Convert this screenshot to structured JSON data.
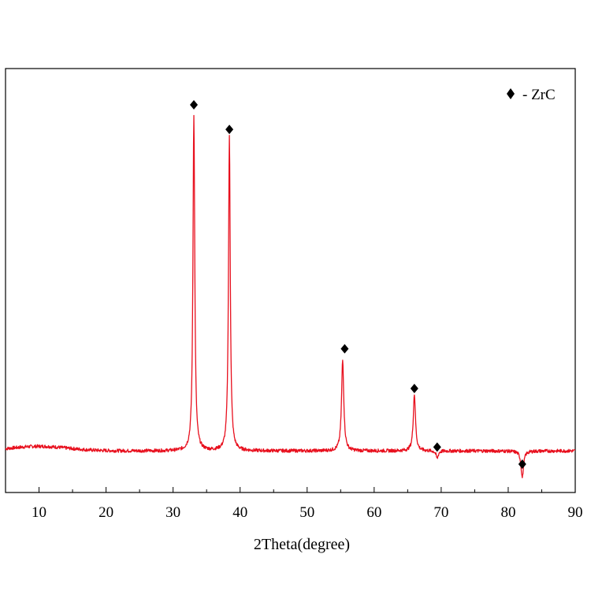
{
  "chart_data": {
    "type": "line",
    "title": "",
    "xlabel": "2Theta(degree)",
    "ylabel": "",
    "xlim": [
      5,
      90
    ],
    "ylim": [
      0,
      100
    ],
    "x_ticks": [
      10,
      20,
      30,
      40,
      50,
      60,
      70,
      80,
      90
    ],
    "x_tick_labels": [
      "10",
      "20",
      "30",
      "40",
      "50",
      "60",
      "70",
      "80",
      "90"
    ],
    "y_ticks_shown": false,
    "grid": false,
    "legend": {
      "position": "top-right",
      "entries": [
        {
          "marker": "diamond",
          "label": "- ZrC"
        }
      ]
    },
    "colors": {
      "line": "#e8101e",
      "marker": "#000000"
    },
    "baseline": 11,
    "series": [
      {
        "name": "",
        "peaks": [
          {
            "x": 33.1,
            "y": 100,
            "width": 0.16
          },
          {
            "x": 38.4,
            "y": 94,
            "width": 0.16
          },
          {
            "x": 55.3,
            "y": 35,
            "width": 0.2
          },
          {
            "x": 66.0,
            "y": 26,
            "width": 0.2
          },
          {
            "x": 69.4,
            "y": 9,
            "width": 0.2
          },
          {
            "x": 82.1,
            "y": 4,
            "width": 0.22
          }
        ]
      }
    ],
    "markers": [
      {
        "x": 33.1,
        "y": 102.5,
        "symbol": "diamond"
      },
      {
        "x": 38.4,
        "y": 96,
        "symbol": "diamond"
      },
      {
        "x": 55.6,
        "y": 38,
        "symbol": "diamond"
      },
      {
        "x": 66.0,
        "y": 27.5,
        "symbol": "diamond"
      },
      {
        "x": 69.4,
        "y": 12,
        "symbol": "diamond"
      },
      {
        "x": 82.1,
        "y": 7.5,
        "symbol": "diamond"
      }
    ]
  }
}
